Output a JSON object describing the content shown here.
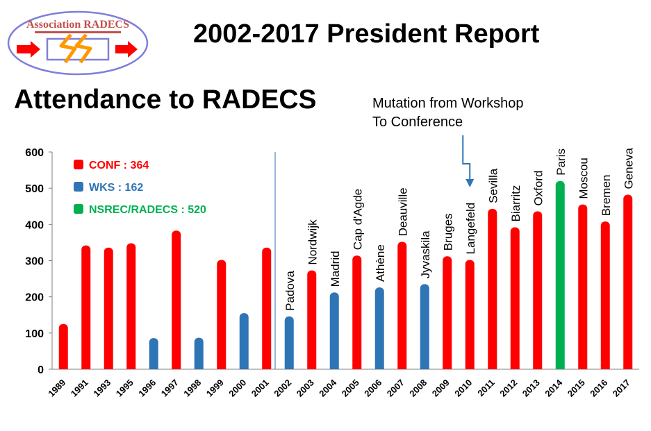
{
  "header": {
    "logo_text": "Association RADECS",
    "title": "2002-2017 President Report",
    "section_title": "Attendance to RADECS"
  },
  "annotation": {
    "line1": "Mutation from Workshop",
    "line2": "To Conference"
  },
  "chart_data": {
    "type": "bar",
    "ylim": [
      0,
      600
    ],
    "yticks": [
      0,
      100,
      200,
      300,
      400,
      500,
      600
    ],
    "grid": false,
    "legend_position": "top-left",
    "legend": [
      {
        "label": "CONF : 364",
        "color": "#ff0000"
      },
      {
        "label": "WKS : 162",
        "color": "#2e75b6"
      },
      {
        "label": "NSREC/RADECS : 520",
        "color": "#00b050"
      }
    ],
    "colors": {
      "conf": "#ff0000",
      "wks": "#2e75b6",
      "nsrec": "#00b050"
    },
    "categories": [
      "1989",
      "1991",
      "1993",
      "1995",
      "1996",
      "1997",
      "1998",
      "1999",
      "2000",
      "2001",
      "2002",
      "2003",
      "2004",
      "2005",
      "2006",
      "2007",
      "2008",
      "2009",
      "2010",
      "2011",
      "2012",
      "2013",
      "2014",
      "2015",
      "2016",
      "2017"
    ],
    "bars": [
      {
        "year": "1989",
        "value": 125,
        "kind": "conf",
        "city": ""
      },
      {
        "year": "1991",
        "value": 342,
        "kind": "conf",
        "city": ""
      },
      {
        "year": "1993",
        "value": 336,
        "kind": "conf",
        "city": ""
      },
      {
        "year": "1995",
        "value": 348,
        "kind": "conf",
        "city": ""
      },
      {
        "year": "1996",
        "value": 86,
        "kind": "wks",
        "city": ""
      },
      {
        "year": "1997",
        "value": 383,
        "kind": "conf",
        "city": ""
      },
      {
        "year": "1998",
        "value": 87,
        "kind": "wks",
        "city": ""
      },
      {
        "year": "1999",
        "value": 302,
        "kind": "conf",
        "city": ""
      },
      {
        "year": "2000",
        "value": 155,
        "kind": "wks",
        "city": ""
      },
      {
        "year": "2001",
        "value": 336,
        "kind": "conf",
        "city": ""
      },
      {
        "year": "2002",
        "value": 146,
        "kind": "wks",
        "city": "Padova"
      },
      {
        "year": "2003",
        "value": 273,
        "kind": "conf",
        "city": "Nordwijk"
      },
      {
        "year": "2004",
        "value": 212,
        "kind": "wks",
        "city": "Madrid"
      },
      {
        "year": "2005",
        "value": 314,
        "kind": "conf",
        "city": "Cap d'Agde"
      },
      {
        "year": "2006",
        "value": 226,
        "kind": "wks",
        "city": "Athène"
      },
      {
        "year": "2007",
        "value": 352,
        "kind": "conf",
        "city": "Deauville"
      },
      {
        "year": "2008",
        "value": 235,
        "kind": "wks",
        "city": "Jyvaskila"
      },
      {
        "year": "2009",
        "value": 312,
        "kind": "conf",
        "city": "Bruges"
      },
      {
        "year": "2010",
        "value": 302,
        "kind": "conf",
        "city": "Langefeld"
      },
      {
        "year": "2011",
        "value": 443,
        "kind": "conf",
        "city": "Sevilla"
      },
      {
        "year": "2012",
        "value": 392,
        "kind": "conf",
        "city": "Biarritz"
      },
      {
        "year": "2013",
        "value": 436,
        "kind": "conf",
        "city": "Oxford"
      },
      {
        "year": "2014",
        "value": 520,
        "kind": "nsrec",
        "city": "Paris"
      },
      {
        "year": "2015",
        "value": 455,
        "kind": "conf",
        "city": "Moscou"
      },
      {
        "year": "2016",
        "value": 408,
        "kind": "conf",
        "city": "Bremen"
      },
      {
        "year": "2017",
        "value": 482,
        "kind": "conf",
        "city": "Geneva"
      }
    ]
  }
}
